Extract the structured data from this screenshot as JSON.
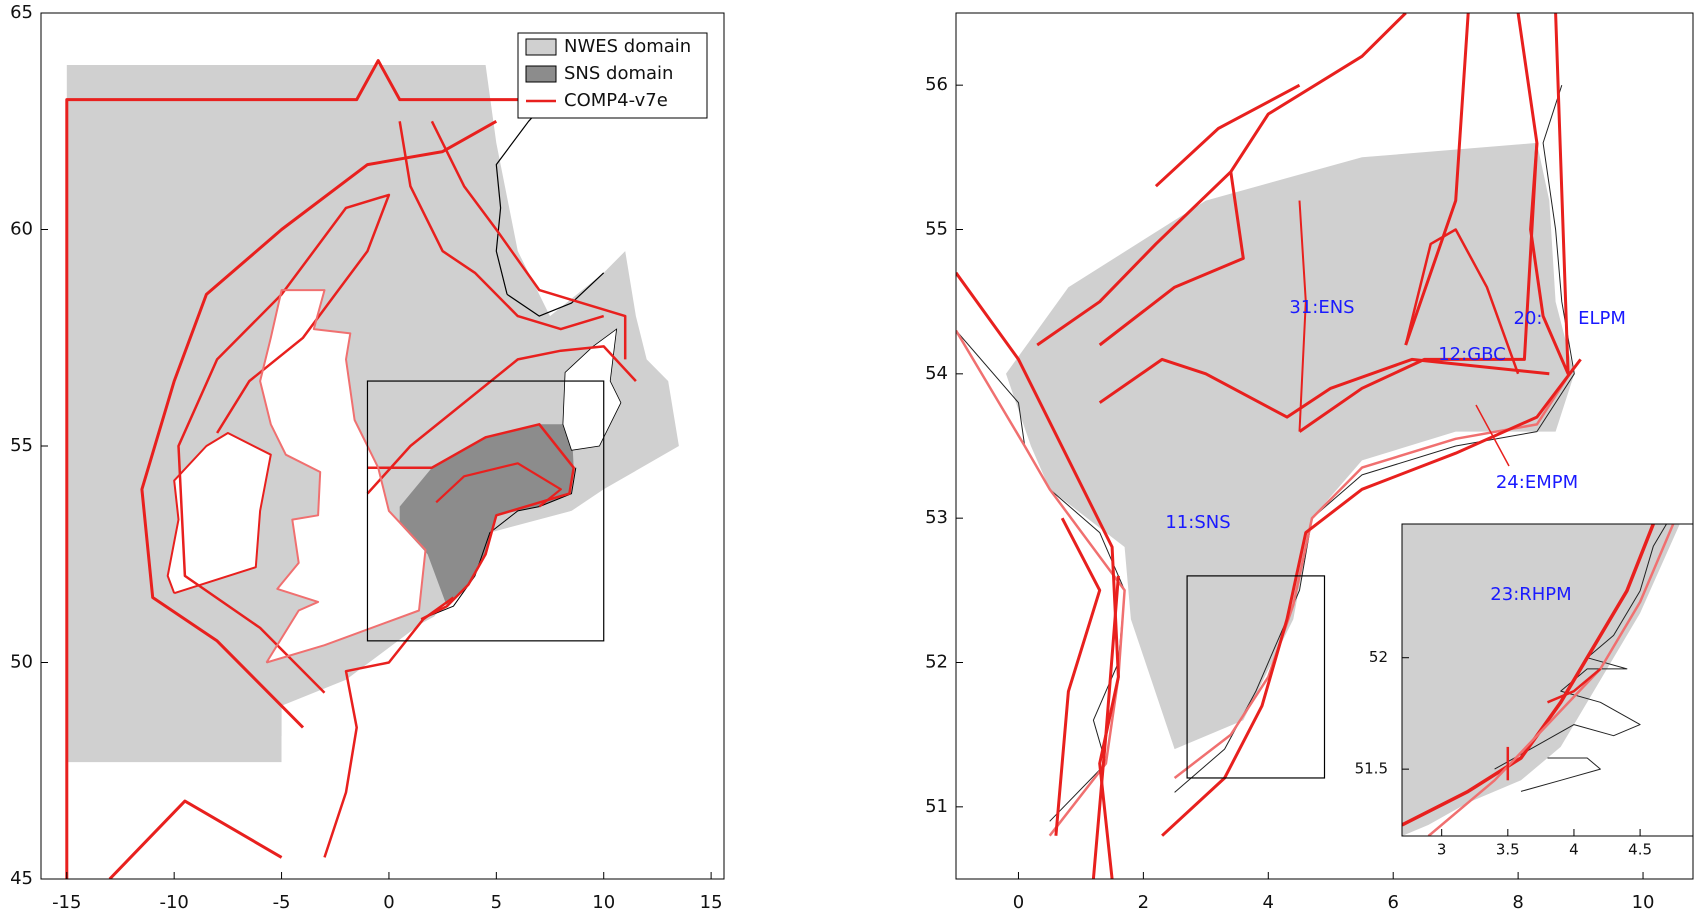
{
  "panels": [
    {
      "xlim": [
        -16.2,
        15.6
      ],
      "ylim": [
        45,
        65
      ],
      "xticks": [
        -15,
        -10,
        -5,
        0,
        5,
        10,
        15
      ],
      "yticks": [
        45,
        50,
        55,
        60,
        65
      ],
      "legend": [
        {
          "name": "NWES domain",
          "color": "#d0d0d0"
        },
        {
          "name": "SNS domain",
          "color": "#8c8c8c"
        },
        {
          "name": "COMP4-v7e",
          "color": "#e8201e"
        }
      ]
    },
    {
      "xlim": [
        -1,
        10.8
      ],
      "ylim": [
        50.5,
        56.5
      ],
      "xticks": [
        0,
        2,
        4,
        6,
        8,
        10
      ],
      "yticks": [
        51,
        52,
        53,
        54,
        55,
        56
      ],
      "labels": [
        "31:ENS",
        "12:GBC",
        "20:",
        "ELPM",
        "24:EMPM",
        "11:SNS"
      ],
      "inset": {
        "xlim": [
          2.7,
          4.9
        ],
        "ylim": [
          51.2,
          52.6
        ],
        "xticks": [
          3,
          3.5,
          4,
          4.5
        ],
        "yticks": [
          51.5,
          52
        ],
        "label": "23:RHPM"
      }
    }
  ]
}
